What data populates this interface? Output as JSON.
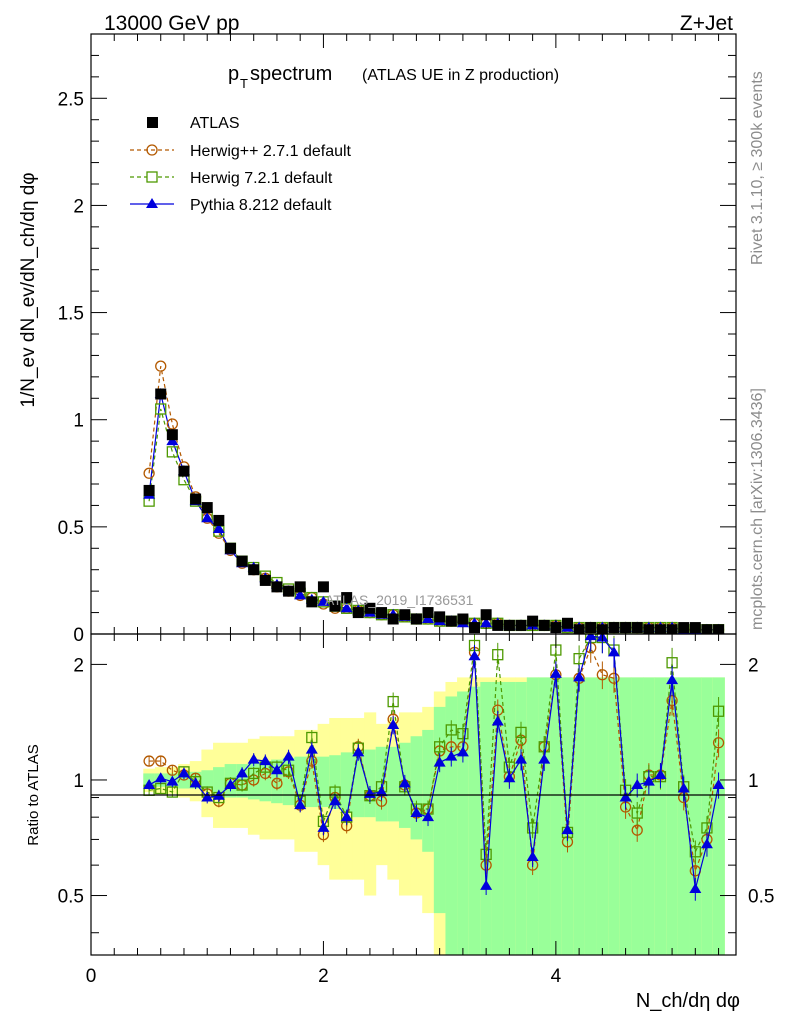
{
  "header": {
    "left": "13000 GeV pp",
    "right": "Z+Jet",
    "title_main": "p",
    "title_sub": "T",
    "title_rest": " spectrum",
    "title_note": "(ATLAS UE in Z production)"
  },
  "side_text": {
    "rivet": "Rivet 3.1.10, ≥ 300k events",
    "site": "mcplots.cern.ch [arXiv:1306.3436]"
  },
  "watermark": "ATLAS_2019_I1736531",
  "legend": [
    {
      "label": "ATLAS",
      "color": "#000000",
      "marker": "square-filled"
    },
    {
      "label": "Herwig++ 2.7.1 default",
      "color": "#b35900",
      "marker": "circle-open"
    },
    {
      "label": "Herwig 7.2.1 default",
      "color": "#4d9900",
      "marker": "square-open"
    },
    {
      "label": "Pythia 8.212 default",
      "color": "#0000dd",
      "marker": "triangle-filled"
    }
  ],
  "axes": {
    "top_ylabel": "1/N_ev dN_ev/dN_ch/dη dφ",
    "bottom_ylabel": "Ratio to ATLAS",
    "xlabel": "N_ch/dη dφ",
    "top_yticks": [
      "0",
      "0.5",
      "1",
      "1.5",
      "2",
      "2.5"
    ],
    "bottom_yticks": [
      "0.5",
      "1",
      "2"
    ],
    "xticks": [
      "0",
      "2",
      "4"
    ]
  },
  "chart_data": {
    "type": "scatter",
    "title": "pT spectrum (ATLAS UE in Z production)",
    "xlabel": "N_ch/dη dφ",
    "ylabel": "1/N_ev dN_ev/dN_ch/dη dφ",
    "xlim": [
      0,
      5.55
    ],
    "ylim": [
      0,
      2.8
    ],
    "ratio_ylim": [
      0.35,
      2.4
    ],
    "x": [
      0.5,
      0.6,
      0.7,
      0.8,
      0.9,
      1.0,
      1.1,
      1.2,
      1.3,
      1.4,
      1.5,
      1.6,
      1.7,
      1.8,
      1.9,
      2.0,
      2.1,
      2.2,
      2.3,
      2.4,
      2.5,
      2.6,
      2.7,
      2.8,
      2.9,
      3.0,
      3.1,
      3.2,
      3.3,
      3.4,
      3.5,
      3.6,
      3.7,
      3.8,
      3.9,
      4.0,
      4.1,
      4.2,
      4.3,
      4.4,
      4.5,
      4.6,
      4.7,
      4.8,
      4.9,
      5.0,
      5.1,
      5.2,
      5.3,
      5.4
    ],
    "series": [
      {
        "name": "ATLAS",
        "values": [
          0.67,
          1.12,
          0.93,
          0.76,
          0.63,
          0.59,
          0.53,
          0.4,
          0.34,
          0.3,
          0.25,
          0.22,
          0.2,
          0.22,
          0.15,
          0.22,
          0.13,
          0.17,
          0.1,
          0.12,
          0.1,
          0.07,
          0.09,
          0.07,
          0.1,
          0.08,
          0.06,
          0.07,
          0.03,
          0.09,
          0.04,
          0.04,
          0.04,
          0.06,
          0.04,
          0.03,
          0.05,
          0.02,
          0.03,
          0.02,
          0.03,
          0.03,
          0.03,
          0.02,
          0.02,
          0.02,
          0.03,
          0.03,
          0.02,
          0.02
        ]
      },
      {
        "name": "Herwig++ 2.7.1 default",
        "values": [
          0.75,
          1.25,
          0.98,
          0.78,
          0.64,
          0.54,
          0.47,
          0.39,
          0.33,
          0.3,
          0.26,
          0.22,
          0.2,
          0.18,
          0.17,
          0.14,
          0.12,
          0.12,
          0.11,
          0.1,
          0.09,
          0.09,
          0.08,
          0.07,
          0.07,
          0.06,
          0.06,
          0.06,
          0.05,
          0.05,
          0.05,
          0.04,
          0.04,
          0.04,
          0.04,
          0.04,
          0.03,
          0.03,
          0.03,
          0.03,
          0.03,
          0.03,
          0.03,
          0.03,
          0.03,
          0.03,
          0.02,
          0.02,
          0.02,
          0.02
        ]
      },
      {
        "name": "Herwig 7.2.1 default",
        "values": [
          0.62,
          1.05,
          0.85,
          0.72,
          0.62,
          0.55,
          0.48,
          0.4,
          0.34,
          0.31,
          0.27,
          0.24,
          0.21,
          0.19,
          0.17,
          0.15,
          0.13,
          0.12,
          0.11,
          0.1,
          0.09,
          0.09,
          0.08,
          0.07,
          0.07,
          0.06,
          0.06,
          0.06,
          0.05,
          0.05,
          0.05,
          0.04,
          0.04,
          0.04,
          0.04,
          0.04,
          0.03,
          0.03,
          0.03,
          0.03,
          0.03,
          0.03,
          0.03,
          0.03,
          0.03,
          0.03,
          0.02,
          0.02,
          0.02,
          0.02
        ]
      },
      {
        "name": "Pythia 8.212 default",
        "values": [
          0.65,
          1.12,
          0.9,
          0.76,
          0.62,
          0.54,
          0.49,
          0.39,
          0.33,
          0.31,
          0.26,
          0.23,
          0.2,
          0.18,
          0.16,
          0.15,
          0.13,
          0.12,
          0.11,
          0.1,
          0.09,
          0.09,
          0.08,
          0.07,
          0.07,
          0.06,
          0.06,
          0.05,
          0.05,
          0.05,
          0.05,
          0.04,
          0.04,
          0.04,
          0.04,
          0.04,
          0.03,
          0.03,
          0.03,
          0.03,
          0.03,
          0.03,
          0.03,
          0.03,
          0.03,
          0.03,
          0.02,
          0.02,
          0.02,
          0.02
        ]
      }
    ],
    "ratio": [
      {
        "name": "Herwig++ 2.7.1 default",
        "values": [
          1.12,
          1.12,
          1.06,
          1.03,
          1.01,
          0.92,
          0.88,
          0.98,
          0.97,
          1.0,
          1.04,
          0.98,
          1.05,
          0.86,
          1.12,
          0.72,
          0.9,
          0.76,
          1.22,
          0.91,
          0.88,
          1.44,
          0.97,
          0.82,
          0.84,
          1.19,
          1.22,
          1.22,
          2.15,
          0.6,
          1.52,
          1.02,
          1.27,
          0.6,
          1.22,
          1.88,
          0.69,
          1.84,
          2.21,
          1.88,
          1.84,
          0.85,
          0.74,
          1.03,
          1.03,
          1.61,
          0.9,
          0.58,
          0.7,
          1.25
        ]
      },
      {
        "name": "Herwig 7.2.1 default",
        "values": [
          0.94,
          0.95,
          0.93,
          1.05,
          0.99,
          0.93,
          0.9,
          0.98,
          0.97,
          1.04,
          1.08,
          1.08,
          1.06,
          0.88,
          1.29,
          0.78,
          0.93,
          0.8,
          1.21,
          0.91,
          0.96,
          1.6,
          0.96,
          0.84,
          0.84,
          1.22,
          1.35,
          1.32,
          2.24,
          0.64,
          2.12,
          1.08,
          1.33,
          0.75,
          1.22,
          2.18,
          0.73,
          2.07,
          2.35,
          2.35,
          2.18,
          0.94,
          0.82,
          1.02,
          1.02,
          2.02,
          0.96,
          0.65,
          0.75,
          1.51
        ]
      },
      {
        "name": "Pythia 8.212 default",
        "values": [
          0.97,
          1.01,
          0.99,
          1.04,
          0.98,
          0.9,
          0.91,
          0.97,
          1.04,
          1.13,
          1.12,
          1.06,
          1.15,
          0.86,
          1.2,
          0.75,
          0.88,
          0.8,
          1.18,
          0.92,
          0.93,
          1.39,
          0.98,
          0.82,
          0.8,
          1.11,
          1.15,
          1.18,
          2.1,
          0.53,
          1.42,
          1.01,
          1.13,
          0.63,
          1.13,
          1.89,
          0.74,
          1.85,
          2.37,
          2.35,
          2.15,
          0.9,
          0.97,
          0.99,
          1.03,
          1.82,
          0.95,
          0.52,
          0.68,
          0.97
        ]
      }
    ],
    "ratio_band": {
      "name": "ATLAS uncertainty",
      "inner_half_width": [
        0.04,
        0.04,
        0.04,
        0.05,
        0.05,
        0.06,
        0.08,
        0.1,
        0.1,
        0.11,
        0.12,
        0.13,
        0.14,
        0.15,
        0.15,
        0.15,
        0.16,
        0.18,
        0.2,
        0.2,
        0.22,
        0.22,
        0.25,
        0.3,
        0.35,
        0.55,
        0.65,
        0.7,
        0.75,
        0.8,
        0.8,
        0.8,
        0.8,
        0.85,
        0.85,
        0.85,
        0.85,
        0.85,
        0.85,
        0.85,
        0.85,
        0.85,
        0.85,
        0.85,
        0.85,
        0.85,
        0.85,
        0.85,
        0.85,
        0.85
      ],
      "outer_half_width": [
        0.07,
        0.08,
        0.08,
        0.1,
        0.12,
        0.2,
        0.25,
        0.25,
        0.25,
        0.28,
        0.3,
        0.3,
        0.3,
        0.35,
        0.35,
        0.4,
        0.45,
        0.45,
        0.45,
        0.5,
        0.4,
        0.45,
        0.5,
        0.5,
        0.55,
        0.7,
        0.8,
        0.85,
        0.85,
        0.85,
        0.85,
        0.85,
        0.85,
        0.85,
        0.85,
        0.85,
        0.85,
        0.85,
        0.85,
        0.85,
        0.85,
        0.85,
        0.85,
        0.85,
        0.85,
        0.85,
        0.85,
        0.85,
        0.85,
        0.85
      ]
    },
    "colors": {
      "data": "#000000",
      "herwigpp": "#b35900",
      "herwig7": "#4d9900",
      "pythia": "#0000dd",
      "band_inner": "#99ff99",
      "band_outer": "#ffff99"
    }
  }
}
